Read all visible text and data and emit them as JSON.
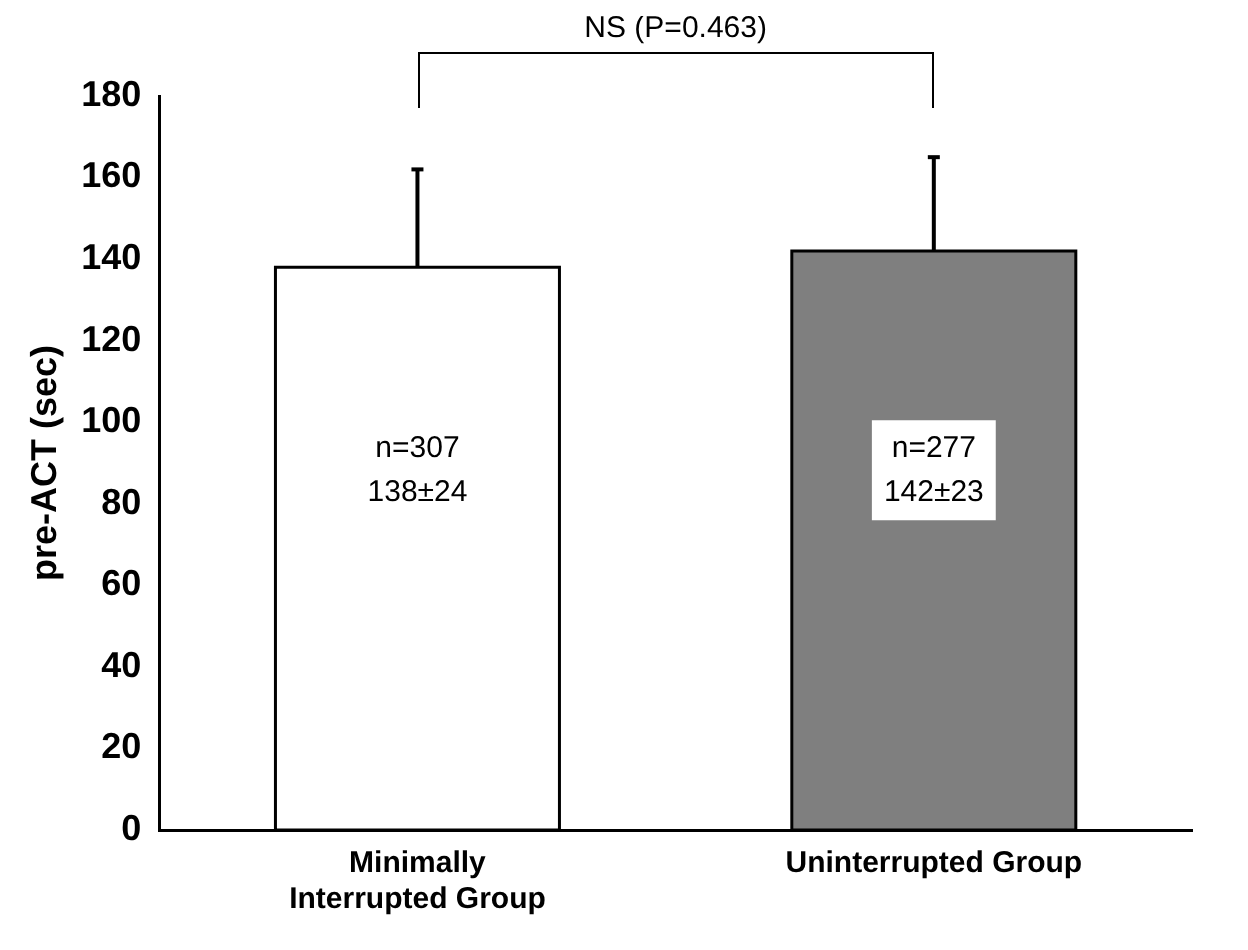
{
  "chart_data": {
    "type": "bar",
    "ylabel": "pre-ACT (sec)",
    "categories": [
      "Minimally Interrupted Group",
      "Uninterrupted Group"
    ],
    "values": [
      138,
      142
    ],
    "colors": [
      "#ffffff",
      "#7f7f7f"
    ],
    "errors": [
      [
        138,
        162
      ],
      [
        142,
        165
      ]
    ],
    "value_labels": [
      "138±24",
      "142±23"
    ],
    "annotations": [
      "n=307",
      "n=277",
      "NS (P=0.463)"
    ],
    "ylim": [
      0,
      180
    ],
    "yticks": [
      0,
      20,
      40,
      60,
      80,
      100,
      120,
      140,
      160,
      180
    ],
    "grid": false,
    "legend": false
  }
}
